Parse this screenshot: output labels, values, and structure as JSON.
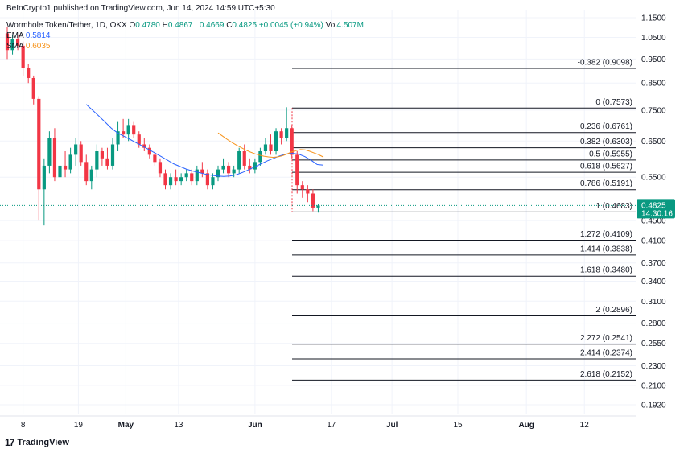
{
  "header": {
    "published_by": "BeInCrypto1 published on TradingView.com, Jun 14, 2024 14:59 UTC+5:30"
  },
  "legend": {
    "symbol": "Wormhole Token/Tether, 1D, OKX",
    "o_label": "O",
    "o_value": "0.4780",
    "h_label": "H",
    "h_value": "0.4867",
    "l_label": "L",
    "l_value": "0.4669",
    "c_label": "C",
    "c_value": "0.4825",
    "change": "+0.0045 (+0.94%)",
    "vol_label": "Vol",
    "vol_value": "4.507M",
    "ema_label": "EMA",
    "ema_value": "0.5814",
    "sma_label": "SMA",
    "sma_value": "0.6035"
  },
  "footer": {
    "logo_text": "TradingView",
    "logo_mark": "17"
  },
  "colors": {
    "up": "#089981",
    "down": "#f23645",
    "ema": "#2962ff",
    "sma": "#f7931a",
    "fib": "#131722",
    "price_tag": "#089981"
  },
  "chart_data": {
    "type": "candlestick",
    "y_scale": "log",
    "y_ticks": [
      "1.1500",
      "1.0500",
      "0.9500",
      "0.8500",
      "0.7500",
      "0.6500",
      "0.5500",
      "0.4500",
      "0.4100",
      "0.3700",
      "0.3400",
      "0.3100",
      "0.2800",
      "0.2550",
      "0.2300",
      "0.2100",
      "0.1920"
    ],
    "x_ticks": [
      "8",
      "19",
      "May",
      "13",
      "Jun",
      "17",
      "Jul",
      "15",
      "Aug",
      "12"
    ],
    "last_price": {
      "value": "0.4825",
      "countdown": "14:30:16"
    },
    "candles": [
      [
        1.07,
        1.1,
        0.95,
        0.99
      ],
      [
        0.99,
        1.06,
        0.97,
        1.04
      ],
      [
        1.04,
        1.06,
        0.99,
        1.01
      ],
      [
        1.01,
        1.03,
        0.88,
        0.91
      ],
      [
        0.91,
        0.93,
        0.85,
        0.87
      ],
      [
        0.87,
        0.88,
        0.77,
        0.79
      ],
      [
        0.79,
        0.8,
        0.45,
        0.52
      ],
      [
        0.52,
        0.6,
        0.44,
        0.58
      ],
      [
        0.58,
        0.68,
        0.56,
        0.66
      ],
      [
        0.66,
        0.69,
        0.54,
        0.55
      ],
      [
        0.55,
        0.6,
        0.53,
        0.58
      ],
      [
        0.58,
        0.62,
        0.55,
        0.57
      ],
      [
        0.57,
        0.63,
        0.56,
        0.61
      ],
      [
        0.61,
        0.66,
        0.58,
        0.64
      ],
      [
        0.64,
        0.65,
        0.58,
        0.59
      ],
      [
        0.59,
        0.61,
        0.53,
        0.54
      ],
      [
        0.54,
        0.58,
        0.52,
        0.57
      ],
      [
        0.57,
        0.64,
        0.55,
        0.62
      ],
      [
        0.62,
        0.63,
        0.58,
        0.6
      ],
      [
        0.6,
        0.63,
        0.57,
        0.58
      ],
      [
        0.58,
        0.66,
        0.57,
        0.64
      ],
      [
        0.64,
        0.71,
        0.62,
        0.68
      ],
      [
        0.68,
        0.72,
        0.66,
        0.67
      ],
      [
        0.67,
        0.72,
        0.65,
        0.7
      ],
      [
        0.7,
        0.71,
        0.66,
        0.67
      ],
      [
        0.67,
        0.68,
        0.63,
        0.64
      ],
      [
        0.64,
        0.66,
        0.62,
        0.63
      ],
      [
        0.63,
        0.64,
        0.6,
        0.61
      ],
      [
        0.61,
        0.62,
        0.58,
        0.59
      ],
      [
        0.59,
        0.6,
        0.55,
        0.56
      ],
      [
        0.56,
        0.57,
        0.52,
        0.53
      ],
      [
        0.53,
        0.56,
        0.52,
        0.55
      ],
      [
        0.55,
        0.57,
        0.53,
        0.54
      ],
      [
        0.54,
        0.56,
        0.53,
        0.55
      ],
      [
        0.55,
        0.57,
        0.54,
        0.56
      ],
      [
        0.56,
        0.57,
        0.53,
        0.54
      ],
      [
        0.54,
        0.58,
        0.53,
        0.57
      ],
      [
        0.57,
        0.59,
        0.55,
        0.56
      ],
      [
        0.56,
        0.57,
        0.52,
        0.53
      ],
      [
        0.53,
        0.56,
        0.52,
        0.55
      ],
      [
        0.55,
        0.58,
        0.54,
        0.57
      ],
      [
        0.57,
        0.6,
        0.56,
        0.58
      ],
      [
        0.58,
        0.59,
        0.55,
        0.56
      ],
      [
        0.56,
        0.58,
        0.55,
        0.57
      ],
      [
        0.57,
        0.63,
        0.56,
        0.62
      ],
      [
        0.62,
        0.64,
        0.57,
        0.58
      ],
      [
        0.58,
        0.6,
        0.56,
        0.57
      ],
      [
        0.57,
        0.6,
        0.56,
        0.59
      ],
      [
        0.59,
        0.63,
        0.58,
        0.62
      ],
      [
        0.62,
        0.66,
        0.61,
        0.64
      ],
      [
        0.64,
        0.67,
        0.61,
        0.62
      ],
      [
        0.62,
        0.69,
        0.61,
        0.68
      ],
      [
        0.68,
        0.69,
        0.64,
        0.66
      ],
      [
        0.66,
        0.76,
        0.65,
        0.69
      ],
      [
        0.69,
        0.7,
        0.6,
        0.61
      ],
      [
        0.61,
        0.62,
        0.51,
        0.53
      ],
      [
        0.53,
        0.54,
        0.5,
        0.52
      ],
      [
        0.52,
        0.53,
        0.49,
        0.51
      ],
      [
        0.51,
        0.52,
        0.47,
        0.478
      ],
      [
        0.478,
        0.4867,
        0.4669,
        0.4825
      ]
    ],
    "ema": [
      0.77,
      0.75,
      0.73,
      0.71,
      0.69,
      0.675,
      0.665,
      0.655,
      0.645,
      0.635,
      0.625,
      0.615,
      0.605,
      0.595,
      0.585,
      0.578,
      0.571,
      0.566,
      0.562,
      0.558,
      0.555,
      0.553,
      0.552,
      0.553,
      0.556,
      0.562,
      0.569,
      0.577,
      0.585,
      0.593,
      0.6,
      0.607,
      0.612,
      0.614,
      0.612,
      0.605,
      0.595,
      0.583,
      0.5814
    ],
    "ema_start_index": 21,
    "sma": [
      0.675,
      0.665,
      0.655,
      0.646,
      0.638,
      0.631,
      0.624,
      0.618,
      0.613,
      0.609,
      0.606,
      0.604,
      0.603,
      0.604,
      0.607,
      0.612,
      0.618,
      0.622,
      0.625,
      0.624,
      0.62,
      0.615,
      0.61,
      0.6035
    ],
    "sma_start_index": 36,
    "fib_levels": [
      {
        "label": "-0.382 (0.9098)",
        "value": 0.9098
      },
      {
        "label": "0 (0.7573)",
        "value": 0.7573
      },
      {
        "label": "0.236 (0.6761)",
        "value": 0.6761
      },
      {
        "label": "0.382 (0.6303)",
        "value": 0.6303
      },
      {
        "label": "0.5 (0.5955)",
        "value": 0.5955
      },
      {
        "label": "0.618 (0.5627)",
        "value": 0.5627
      },
      {
        "label": "0.786 (0.5191)",
        "value": 0.5191
      },
      {
        "label": "1 (0.4683)",
        "value": 0.4683
      },
      {
        "label": "1.272 (0.4109)",
        "value": 0.4109
      },
      {
        "label": "1.414 (0.3838)",
        "value": 0.3838
      },
      {
        "label": "1.618 (0.3480)",
        "value": 0.348
      },
      {
        "label": "2 (0.2896)",
        "value": 0.2896
      },
      {
        "label": "2.272 (0.2541)",
        "value": 0.2541
      },
      {
        "label": "2.414 (0.2374)",
        "value": 0.2374
      },
      {
        "label": "2.618 (0.2152)",
        "value": 0.2152
      }
    ]
  }
}
